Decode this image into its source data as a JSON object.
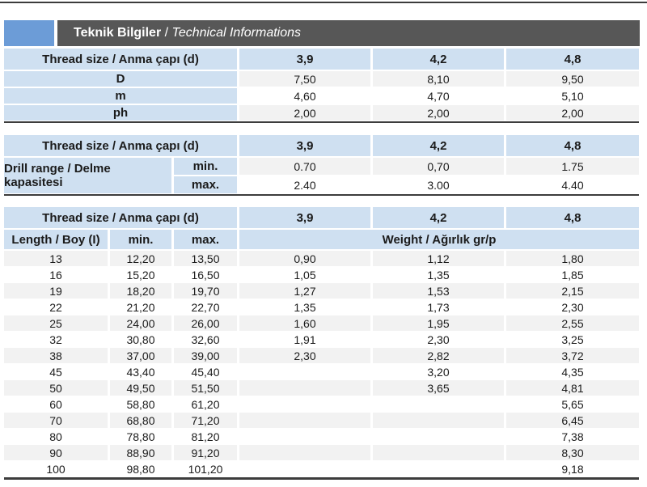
{
  "title": {
    "bold": "Teknik Bilgiler",
    "separator": " / ",
    "italic": "Technical Informations"
  },
  "colors": {
    "accent_blue": "#6c9cd7",
    "title_bar": "#575757",
    "header_blue": "#cfe0f1",
    "stripe_gray": "#f2f2f2",
    "border_line": "#3c3c3c"
  },
  "thread_header": "Thread size / Anma çapı (d)",
  "thread_sizes": [
    "3,9",
    "4,2",
    "4,8"
  ],
  "table1": {
    "rows": [
      {
        "label": "D",
        "v1": "7,50",
        "v2": "8,10",
        "v3": "9,50"
      },
      {
        "label": "m",
        "v1": "4,60",
        "v2": "4,70",
        "v3": "5,10"
      },
      {
        "label": "ph",
        "v1": "2,00",
        "v2": "2,00",
        "v3": "2,00"
      }
    ]
  },
  "table2": {
    "label": "Drill range / Delme kapasitesi",
    "rows": [
      {
        "sub": "min.",
        "v1": "0.70",
        "v2": "0,70",
        "v3": "1.75"
      },
      {
        "sub": "max.",
        "v1": "2.40",
        "v2": "3.00",
        "v3": "4.40"
      }
    ]
  },
  "table3": {
    "length_header": "Length / Boy (I)",
    "min_header": "min.",
    "max_header": "max.",
    "weight_header": "Weight / Ağırlık gr/p",
    "rows": [
      {
        "length": "13",
        "min": "12,20",
        "max": "13,50",
        "w1": "0,90",
        "w2": "1,12",
        "w3": "1,80"
      },
      {
        "length": "16",
        "min": "15,20",
        "max": "16,50",
        "w1": "1,05",
        "w2": "1,35",
        "w3": "1,85"
      },
      {
        "length": "19",
        "min": "18,20",
        "max": "19,70",
        "w1": "1,27",
        "w2": "1,53",
        "w3": "2,15"
      },
      {
        "length": "22",
        "min": "21,20",
        "max": "22,70",
        "w1": "1,35",
        "w2": "1,73",
        "w3": "2,30"
      },
      {
        "length": "25",
        "min": "24,00",
        "max": "26,00",
        "w1": "1,60",
        "w2": "1,95",
        "w3": "2,55"
      },
      {
        "length": "32",
        "min": "30,80",
        "max": "32,60",
        "w1": "1,91",
        "w2": "2,30",
        "w3": "3,25"
      },
      {
        "length": "38",
        "min": "37,00",
        "max": "39,00",
        "w1": "2,30",
        "w2": "2,82",
        "w3": "3,72"
      },
      {
        "length": "45",
        "min": "43,40",
        "max": "45,40",
        "w1": "",
        "w2": "3,20",
        "w3": "4,35"
      },
      {
        "length": "50",
        "min": "49,50",
        "max": "51,50",
        "w1": "",
        "w2": "3,65",
        "w3": "4,81"
      },
      {
        "length": "60",
        "min": "58,80",
        "max": "61,20",
        "w1": "",
        "w2": "",
        "w3": "5,65"
      },
      {
        "length": "70",
        "min": "68,80",
        "max": "71,20",
        "w1": "",
        "w2": "",
        "w3": "6,45"
      },
      {
        "length": "80",
        "min": "78,80",
        "max": "81,20",
        "w1": "",
        "w2": "",
        "w3": "7,38"
      },
      {
        "length": "90",
        "min": "88,90",
        "max": "91,20",
        "w1": "",
        "w2": "",
        "w3": "8,30"
      },
      {
        "length": "100",
        "min": "98,80",
        "max": "101,20",
        "w1": "",
        "w2": "",
        "w3": "9,18"
      }
    ]
  }
}
